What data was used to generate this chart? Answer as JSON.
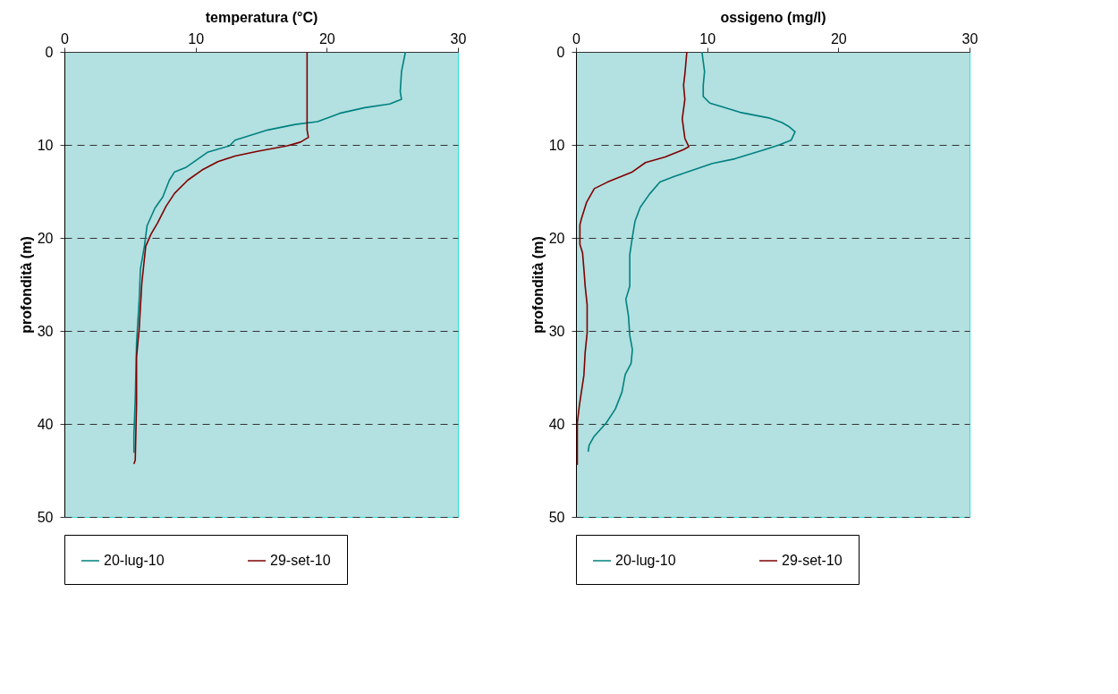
{
  "chart_data": [
    {
      "type": "line",
      "xlabel": "temperatura (°C)",
      "ylabel": "profondità (m)",
      "xlim": [
        0,
        30
      ],
      "xticks": [
        0,
        10,
        20,
        30
      ],
      "ylim": [
        50,
        0
      ],
      "yticks": [
        0,
        10,
        20,
        30,
        40,
        50
      ],
      "grid": "y",
      "legend": "bottom",
      "series": [
        {
          "name": "20-lug-10",
          "color": "#008080",
          "x": [
            26.0,
            25.7,
            25.6,
            25.7,
            24.8,
            22.9,
            21.0,
            19.3,
            17.6,
            15.5,
            13.0,
            12.6,
            10.9,
            9.3,
            8.4,
            8.0,
            7.5,
            6.9,
            6.3,
            6.1,
            5.8,
            5.7,
            5.5,
            5.4,
            5.3,
            5.3
          ],
          "values": [
            0,
            2.1,
            4.3,
            5.1,
            5.6,
            6.0,
            6.6,
            7.5,
            7.8,
            8.4,
            9.5,
            10.1,
            10.8,
            12.4,
            12.9,
            13.8,
            15.6,
            16.8,
            18.7,
            20.9,
            23.3,
            26.7,
            31.3,
            37.4,
            41.1,
            43.1
          ]
        },
        {
          "name": "29-set-10",
          "color": "#800000",
          "x": [
            18.5,
            18.5,
            18.6,
            18.0,
            17.0,
            14.7,
            13.0,
            11.7,
            10.5,
            9.4,
            8.4,
            7.75,
            7.1,
            6.6,
            6.2,
            5.9,
            5.7,
            5.5,
            5.5,
            5.4,
            5.3
          ],
          "values": [
            0,
            8.4,
            9.2,
            9.7,
            10.1,
            10.7,
            11.2,
            11.8,
            12.7,
            13.8,
            15.2,
            16.6,
            18.4,
            19.6,
            20.9,
            24.9,
            29.8,
            32.8,
            37.8,
            43.9,
            44.3
          ]
        }
      ]
    },
    {
      "type": "line",
      "xlabel": "ossigeno (mg/l)",
      "ylabel": "profondità (m)",
      "xlim": [
        0,
        30
      ],
      "xticks": [
        0,
        10,
        20,
        30
      ],
      "ylim": [
        50,
        0
      ],
      "yticks": [
        0,
        10,
        20,
        30,
        40,
        50
      ],
      "grid": "y",
      "legend": "bottom",
      "series": [
        {
          "name": "20-lug-10",
          "color": "#008080",
          "x": [
            9.6,
            9.8,
            9.7,
            9.7,
            10.2,
            11.1,
            12.5,
            14.7,
            15.7,
            16.2,
            16.7,
            16.4,
            15.5,
            14.4,
            12.1,
            10.4,
            8.5,
            7.5,
            6.4,
            5.6,
            4.9,
            4.5,
            4.3,
            4.1,
            4.1,
            3.8,
            4.0,
            4.1,
            4.3,
            4.2,
            3.75,
            3.5,
            3.0,
            2.3,
            1.35,
            1.0,
            0.93
          ],
          "values": [
            0,
            2.1,
            3.6,
            4.8,
            5.5,
            5.9,
            6.5,
            7.1,
            7.6,
            8.0,
            8.6,
            9.5,
            10.0,
            10.5,
            11.5,
            12.0,
            12.9,
            13.4,
            14.0,
            15.3,
            16.7,
            18.2,
            19.9,
            21.8,
            25.2,
            26.6,
            28.4,
            30.5,
            32.0,
            33.5,
            34.7,
            36.6,
            38.4,
            39.9,
            41.4,
            42.3,
            43.0
          ]
        },
        {
          "name": "29-set-10",
          "color": "#800000",
          "x": [
            8.45,
            8.3,
            8.2,
            8.3,
            8.1,
            8.3,
            8.6,
            8.2,
            6.8,
            5.3,
            4.3,
            2.4,
            1.4,
            0.8,
            0.4,
            0.3,
            0.3,
            0.5,
            0.6,
            0.7,
            0.85,
            0.85,
            0.7,
            0.6,
            0.25,
            0.1,
            0.1
          ],
          "values": [
            0,
            2.4,
            3.6,
            5.1,
            7.2,
            9.3,
            10.2,
            10.5,
            11.3,
            11.9,
            12.9,
            14.0,
            14.7,
            16.2,
            18.0,
            18.6,
            20.7,
            21.6,
            23.3,
            25.2,
            27.2,
            30.2,
            32.3,
            34.8,
            38.1,
            39.9,
            44.4
          ]
        }
      ]
    }
  ]
}
